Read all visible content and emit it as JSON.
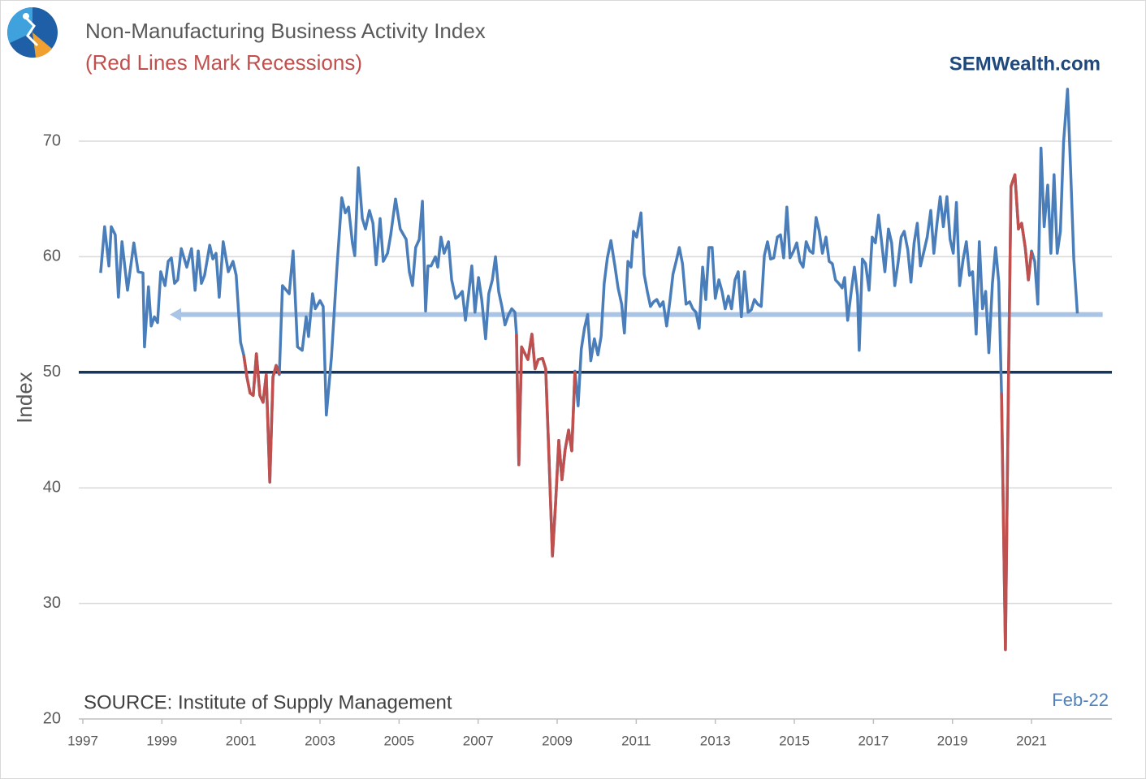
{
  "chart_data": {
    "type": "line",
    "title": "Non-Manufacturing  Business Activity Index",
    "subtitle": "(Red Lines Mark Recessions)",
    "brand": "SEMWealth.com",
    "ylabel": "Index",
    "source": "SOURCE:  Institute of Supply Management",
    "date_note": "Feb-22",
    "xlim": [
      1997,
      2023
    ],
    "xticks": [
      1997,
      1999,
      2001,
      2003,
      2005,
      2007,
      2009,
      2011,
      2013,
      2015,
      2017,
      2019,
      2021
    ],
    "ylim": [
      20,
      75
    ],
    "yticks": [
      20,
      30,
      40,
      50,
      60,
      70
    ],
    "grid": true,
    "reference_line": {
      "y": 50,
      "color": "#17365d"
    },
    "arrow": {
      "y": 55,
      "from": 2022.8,
      "to": 1999.2,
      "color": "#a9c4e4"
    },
    "series": [
      {
        "color": "#4a7ebb",
        "x": [
          1997.45,
          1997.55,
          1997.66,
          1997.72,
          1997.82,
          1997.9,
          1997.99,
          1998.13,
          1998.29,
          1998.4,
          1998.52,
          1998.56,
          1998.66,
          1998.73,
          1998.81,
          1998.89,
          1998.97,
          1999.08,
          1999.16,
          1999.24,
          1999.32,
          1999.4,
          1999.49,
          1999.63,
          1999.75,
          1999.84,
          1999.92,
          2000.0,
          2000.08,
          2000.21,
          2000.29,
          2000.37,
          2000.45,
          2000.55,
          2000.68,
          2000.8,
          2000.88,
          2000.99,
          2001.07,
          2001.15,
          2001.23,
          2001.31,
          2001.39,
          2001.48,
          2001.56,
          2001.64,
          2001.73,
          2001.81,
          2001.89,
          2001.97,
          2002.05,
          2002.22,
          2002.32,
          2002.43,
          2002.55,
          2002.65,
          2002.71,
          2002.81,
          2002.88,
          2003.0,
          2003.08,
          2003.16,
          2003.29,
          2003.43,
          2003.55,
          2003.64,
          2003.72,
          2003.82,
          2003.88,
          2003.97,
          2004.07,
          2004.15,
          2004.25,
          2004.34,
          2004.42,
          2004.52,
          2004.6,
          2004.71,
          2004.79,
          2004.91,
          2005.03,
          2005.18,
          2005.26,
          2005.34,
          2005.42,
          2005.51,
          2005.59,
          2005.67,
          2005.73,
          2005.81,
          2005.92,
          2005.98,
          2006.06,
          2006.14,
          2006.25,
          2006.33,
          2006.43,
          2006.51,
          2006.6,
          2006.68,
          2006.76,
          2006.84,
          2006.92,
          2007.01,
          2007.09,
          2007.19,
          2007.27,
          2007.36,
          2007.44,
          2007.52,
          2007.6,
          2007.68,
          2007.77,
          2007.85,
          2007.93,
          2007.97,
          2008.03,
          2008.1,
          2008.2,
          2008.26,
          2008.36,
          2008.44,
          2008.52,
          2008.63,
          2008.71,
          2008.79,
          2008.88,
          2008.96,
          2009.04,
          2009.12,
          2009.2,
          2009.29,
          2009.37,
          2009.45,
          2009.53,
          2009.61,
          2009.69,
          2009.77,
          2009.85,
          2009.94,
          2010.03,
          2010.11,
          2010.19,
          2010.27,
          2010.36,
          2010.46,
          2010.54,
          2010.63,
          2010.7,
          2010.79,
          2010.87,
          2010.93,
          2011.01,
          2011.12,
          2011.2,
          2011.28,
          2011.36,
          2011.44,
          2011.52,
          2011.6,
          2011.68,
          2011.77,
          2011.85,
          2011.93,
          2012.01,
          2012.09,
          2012.17,
          2012.26,
          2012.35,
          2012.43,
          2012.51,
          2012.59,
          2012.68,
          2012.76,
          2012.84,
          2012.92,
          2013.0,
          2013.09,
          2013.17,
          2013.25,
          2013.33,
          2013.41,
          2013.5,
          2013.58,
          2013.66,
          2013.74,
          2013.83,
          2013.91,
          2013.99,
          2014.07,
          2014.16,
          2014.24,
          2014.32,
          2014.4,
          2014.48,
          2014.57,
          2014.65,
          2014.73,
          2014.81,
          2014.89,
          2014.98,
          2015.06,
          2015.14,
          2015.22,
          2015.3,
          2015.39,
          2015.47,
          2015.55,
          2015.63,
          2015.71,
          2015.8,
          2015.88,
          2015.96,
          2016.04,
          2016.12,
          2016.21,
          2016.27,
          2016.35,
          2016.44,
          2016.52,
          2016.6,
          2016.64,
          2016.72,
          2016.8,
          2016.89,
          2016.97,
          2017.05,
          2017.13,
          2017.21,
          2017.29,
          2017.38,
          2017.46,
          2017.54,
          2017.62,
          2017.7,
          2017.78,
          2017.87,
          2017.95,
          2018.03,
          2018.11,
          2018.19,
          2018.28,
          2018.36,
          2018.45,
          2018.53,
          2018.61,
          2018.69,
          2018.77,
          2018.86,
          2018.94,
          2019.02,
          2019.1,
          2019.18,
          2019.27,
          2019.35,
          2019.43,
          2019.51,
          2019.6,
          2019.68,
          2019.76,
          2019.84,
          2019.92,
          2020.01,
          2020.09,
          2020.17,
          2020.24,
          2020.34,
          2020.42,
          2020.48,
          2020.58,
          2020.67,
          2020.75,
          2020.84,
          2020.92,
          2021.0,
          2021.08,
          2021.16,
          2021.24,
          2021.32,
          2021.41,
          2021.49,
          2021.57,
          2021.65,
          2021.73,
          2021.81,
          2021.91,
          2021.99,
          2022.07,
          2022.16
        ],
        "values": [
          58.6,
          62.6,
          59.2,
          62.6,
          61.9,
          56.5,
          61.3,
          57.1,
          61.2,
          58.7,
          58.6,
          52.2,
          57.4,
          54.0,
          54.8,
          54.3,
          58.7,
          57.5,
          59.6,
          59.9,
          57.7,
          58.0,
          60.7,
          59.1,
          60.7,
          57.1,
          60.5,
          57.7,
          58.4,
          61.0,
          59.8,
          60.3,
          56.5,
          61.3,
          58.7,
          59.6,
          58.4,
          52.6,
          51.5,
          49.6,
          48.2,
          48.0,
          51.6,
          48.0,
          47.4,
          49.8,
          40.5,
          49.6,
          50.6,
          49.8,
          57.5,
          56.8,
          60.5,
          52.2,
          51.9,
          54.8,
          53.1,
          56.8,
          55.5,
          56.2,
          55.7,
          46.3,
          51.3,
          59.1,
          65.1,
          63.8,
          64.3,
          61.2,
          60.1,
          67.7,
          63.3,
          62.4,
          64.0,
          62.9,
          59.3,
          63.3,
          59.6,
          60.3,
          61.9,
          65.0,
          62.4,
          61.5,
          58.7,
          57.5,
          60.8,
          61.5,
          64.8,
          55.3,
          59.2,
          59.2,
          60.0,
          59.1,
          61.7,
          60.3,
          61.3,
          58.0,
          56.4,
          56.6,
          57.0,
          54.5,
          56.8,
          59.2,
          55.2,
          58.2,
          56.3,
          52.9,
          56.8,
          58.0,
          60.0,
          57.0,
          55.7,
          54.1,
          55.0,
          55.5,
          55.2,
          53.3,
          42.0,
          52.2,
          51.5,
          51.1,
          53.3,
          50.3,
          51.1,
          51.2,
          50.3,
          42.9,
          34.1,
          38.7,
          44.1,
          40.7,
          43.3,
          45.0,
          43.2,
          50.1,
          47.1,
          52.0,
          53.8,
          55.0,
          51.0,
          52.9,
          51.5,
          53.1,
          57.7,
          59.9,
          61.4,
          59.2,
          57.3,
          55.9,
          53.4,
          59.6,
          59.1,
          62.2,
          61.7,
          63.8,
          58.5,
          57.0,
          55.7,
          56.1,
          56.3,
          55.7,
          56.1,
          54.0,
          56.1,
          58.5,
          59.6,
          60.8,
          59.4,
          55.9,
          56.1,
          55.5,
          55.2,
          53.8,
          59.1,
          56.3,
          60.8,
          60.8,
          56.4,
          58.0,
          57.0,
          55.5,
          56.6,
          55.5,
          58.0,
          58.7,
          54.8,
          58.7,
          55.2,
          55.4,
          56.3,
          55.9,
          55.7,
          60.1,
          61.3,
          59.8,
          59.9,
          61.7,
          61.9,
          59.9,
          64.3,
          59.9,
          60.5,
          61.2,
          59.6,
          59.1,
          61.3,
          60.5,
          60.3,
          63.4,
          62.2,
          60.3,
          61.7,
          59.6,
          59.4,
          58.0,
          57.7,
          57.3,
          58.2,
          54.5,
          57.0,
          59.1,
          56.6,
          51.9,
          59.8,
          59.4,
          57.1,
          61.7,
          61.2,
          63.6,
          61.2,
          58.7,
          62.4,
          61.2,
          57.5,
          59.4,
          61.7,
          62.2,
          60.6,
          57.8,
          61.2,
          62.9,
          59.2,
          60.5,
          61.7,
          64.0,
          60.3,
          62.9,
          65.2,
          62.6,
          65.2,
          61.5,
          60.3,
          64.7,
          57.5,
          59.8,
          61.3,
          58.4,
          58.7,
          53.3,
          61.3,
          55.5,
          57.0,
          51.7,
          57.7,
          60.8,
          57.8,
          48.2,
          26.0,
          49.9,
          66.1,
          67.1,
          62.4,
          62.9,
          60.8,
          58.0,
          60.5,
          59.6,
          55.9,
          69.4,
          62.6,
          66.2,
          60.3,
          67.1,
          60.3,
          62.2,
          69.9,
          74.5,
          67.5,
          59.8,
          55.1
        ]
      },
      {
        "color": "#c0504d",
        "x": [
          2001.07,
          2001.15,
          2001.23,
          2001.31,
          2001.39,
          2001.48,
          2001.56,
          2001.64,
          2001.73,
          2001.81,
          2001.89,
          2001.97
        ],
        "values": [
          51.5,
          49.6,
          48.2,
          48.0,
          51.6,
          48.0,
          47.4,
          49.8,
          40.5,
          49.6,
          50.6,
          49.8
        ]
      },
      {
        "color": "#c0504d",
        "x": [
          2007.97,
          2008.03,
          2008.1,
          2008.2,
          2008.26,
          2008.36,
          2008.44,
          2008.52,
          2008.63,
          2008.71,
          2008.79,
          2008.88,
          2008.96,
          2009.04,
          2009.12,
          2009.2,
          2009.29,
          2009.37,
          2009.45
        ],
        "values": [
          53.3,
          42.0,
          52.2,
          51.5,
          51.1,
          53.3,
          50.3,
          51.1,
          51.2,
          50.3,
          42.9,
          34.1,
          38.7,
          44.1,
          40.7,
          43.3,
          45.0,
          43.2,
          50.1
        ]
      },
      {
        "color": "#c0504d",
        "x": [
          2020.24,
          2020.34,
          2020.42,
          2020.48,
          2020.58,
          2020.67,
          2020.75,
          2020.84,
          2020.92,
          2021.0
        ],
        "values": [
          48.2,
          26.0,
          49.9,
          66.1,
          67.1,
          62.4,
          62.9,
          60.8,
          58.0,
          60.5
        ]
      }
    ]
  }
}
